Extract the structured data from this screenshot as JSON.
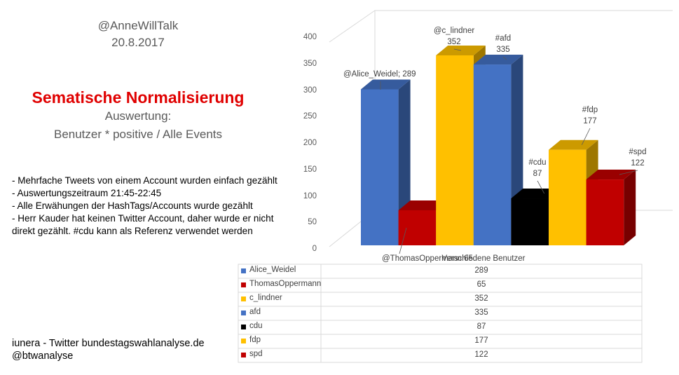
{
  "header": {
    "account": "@AnneWillTalk",
    "date": "20.8.2017"
  },
  "heading": "Sematische Normalisierung",
  "subheading": [
    "Auswertung:",
    "Benutzer * positive / Alle Events"
  ],
  "notes": [
    "- Mehrfache Tweets von einem Account wurden einfach gezählt",
    "- Auswertungszeitraum 21:45-22:45",
    "- Alle Erwähungen der HashTags/Accounts wurde gezählt",
    "- Herr Kauder hat keinen Twitter Account, daher wurde er nicht direkt gezählt. #cdu kann als Referenz verwendet werden"
  ],
  "footer": [
    "iunera - Twitter bundestagswahlanalyse.de",
    "@btwanalyse"
  ],
  "chart_data": {
    "type": "bar3d",
    "categories": [
      "Verschiedene Benutzer"
    ],
    "ylim": [
      0,
      400
    ],
    "yticks": [
      0,
      50,
      100,
      150,
      200,
      250,
      300,
      350,
      400
    ],
    "series": [
      {
        "name": "Alice_Weidel",
        "color": "#4472c4",
        "values": [
          289
        ],
        "value_labels": [
          "@Alice_Weidel; 289"
        ]
      },
      {
        "name": "ThomasOppermann",
        "color": "#c00000",
        "values": [
          65
        ],
        "value_labels": [
          "@ThomasOppermann 65"
        ]
      },
      {
        "name": "c_lindner",
        "color": "#ffc000",
        "values": [
          352
        ],
        "value_labels": [
          "@c_lindner\n352"
        ]
      },
      {
        "name": "afd",
        "color": "#4472c4",
        "values": [
          335
        ],
        "value_labels": [
          "#afd\n335"
        ]
      },
      {
        "name": "cdu",
        "color": "#000000",
        "values": [
          87
        ],
        "value_labels": [
          "#cdu\n87"
        ]
      },
      {
        "name": "fdp",
        "color": "#ffc000",
        "values": [
          177
        ],
        "value_labels": [
          "#fdp\n177"
        ]
      },
      {
        "name": "spd",
        "color": "#c00000",
        "values": [
          122
        ],
        "value_labels": [
          "#spd\n122"
        ]
      }
    ]
  }
}
